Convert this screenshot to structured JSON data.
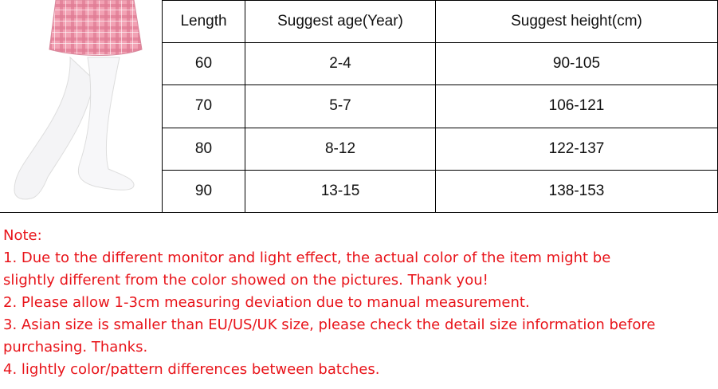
{
  "table": {
    "headers": [
      "Length",
      "Suggest age(Year)",
      "Suggest height(cm)"
    ],
    "rows": [
      [
        "60",
        "2-4",
        "90-105"
      ],
      [
        "70",
        "5-7",
        "106-121"
      ],
      [
        "80",
        "8-12",
        "122-137"
      ],
      [
        "90",
        "13-15",
        "138-153"
      ]
    ]
  },
  "notes": {
    "title": "Note:",
    "lines": [
      "1. Due to the different monitor and light effect, the actual color of the item might be",
      "slightly different from the color showed on the pictures. Thank you!",
      "2. Please allow 1-3cm measuring deviation due to manual measurement.",
      "3. Asian size is smaller than EU/US/UK size, please check the detail size information before",
      "purchasing. Thanks.",
      "4. lightly color/pattern differences between batches."
    ]
  }
}
